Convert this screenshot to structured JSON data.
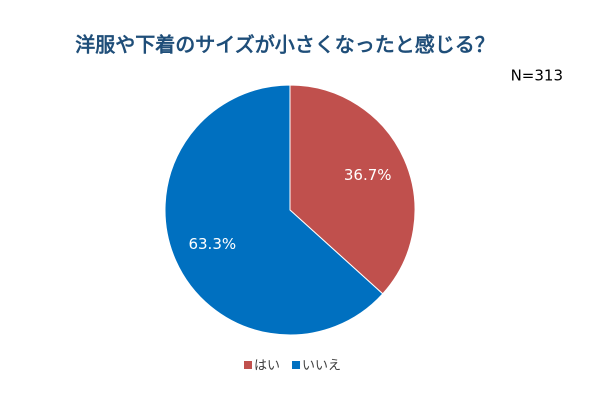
{
  "chart_data": {
    "type": "pie",
    "title": "洋服や下着のサイズが小さくなったと感じる？",
    "subtitle": "N=313",
    "categories": [
      "はい",
      "いいえ"
    ],
    "values": [
      36.7,
      63.3
    ],
    "value_labels": [
      "36.7%",
      "63.3%"
    ],
    "colors": [
      "#c0504d",
      "#0070c0"
    ],
    "legend": "bottom"
  }
}
